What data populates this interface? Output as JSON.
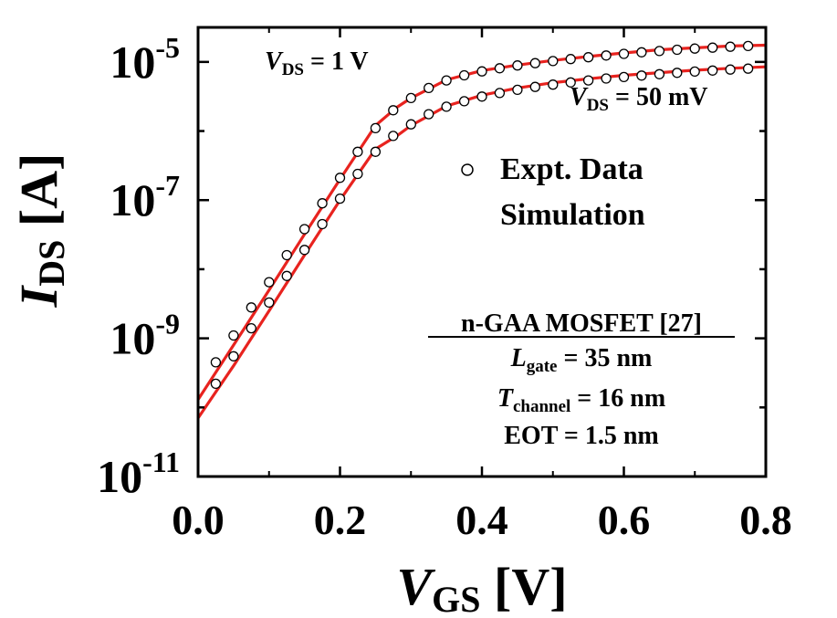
{
  "chart_data": {
    "type": "scatter",
    "xlabel": {
      "main": "V",
      "sub": "GS",
      "unit": " [V]"
    },
    "ylabel": {
      "main": "I",
      "sub": "DS",
      "unit": " [A]"
    },
    "xlim": [
      0.0,
      0.8
    ],
    "ylim_log10": [
      -11,
      -4.5
    ],
    "y_scale": "log",
    "x_ticks": [
      0.0,
      0.2,
      0.4,
      0.6,
      0.8
    ],
    "x_tick_labels": [
      "0.0",
      "0.2",
      "0.4",
      "0.6",
      "0.8"
    ],
    "y_ticks_log10": [
      -11,
      -9,
      -7,
      -5
    ],
    "y_tick_labels": [
      {
        "base": "10",
        "exp": "-11"
      },
      {
        "base": "10",
        "exp": "-9"
      },
      {
        "base": "10",
        "exp": "-7"
      },
      {
        "base": "10",
        "exp": "-5"
      }
    ],
    "legend": {
      "position": "center-right",
      "items": [
        {
          "label": "Expt. Data",
          "marker": "open-circle"
        },
        {
          "label": "Simulation",
          "marker": "none"
        }
      ]
    },
    "series": [
      {
        "name": "V_DS = 1 V",
        "label": {
          "main": "V",
          "sub": "DS",
          "rest": " = 1 V"
        },
        "color": "#e8231f",
        "simulation": {
          "x": [
            0.0,
            0.05,
            0.1,
            0.15,
            0.2,
            0.25,
            0.28,
            0.3,
            0.35,
            0.4,
            0.45,
            0.5,
            0.55,
            0.6,
            0.65,
            0.7,
            0.75,
            0.8
          ],
          "y": [
            1.3e-10,
            8e-10,
            5e-09,
            3.2e-08,
            2e-07,
            1.2e-06,
            2.2e-06,
            3e-06,
            5.5e-06,
            7.5e-06,
            9e-06,
            1.05e-05,
            1.2e-05,
            1.35e-05,
            1.5e-05,
            1.6e-05,
            1.7e-05,
            1.75e-05
          ]
        },
        "expt": {
          "x": [
            0.025,
            0.05,
            0.075,
            0.1,
            0.125,
            0.15,
            0.175,
            0.2,
            0.225,
            0.25,
            0.275,
            0.3,
            0.325,
            0.35,
            0.375,
            0.4,
            0.425,
            0.45,
            0.475,
            0.5,
            0.525,
            0.55,
            0.575,
            0.6,
            0.625,
            0.65,
            0.675,
            0.7,
            0.725,
            0.75,
            0.775
          ],
          "y": [
            4.5e-10,
            1.1e-09,
            2.8e-09,
            6.5e-09,
            1.6e-08,
            3.8e-08,
            9e-08,
            2.1e-07,
            5e-07,
            1.1e-06,
            2e-06,
            3e-06,
            4.2e-06,
            5.4e-06,
            6.4e-06,
            7.3e-06,
            8.1e-06,
            8.9e-06,
            9.6e-06,
            1.03e-05,
            1.1e-05,
            1.17e-05,
            1.24e-05,
            1.31e-05,
            1.38e-05,
            1.44e-05,
            1.5e-05,
            1.56e-05,
            1.61e-05,
            1.66e-05,
            1.7e-05
          ]
        }
      },
      {
        "name": "V_DS = 50 mV",
        "label": {
          "main": "V",
          "sub": "DS",
          "rest": " = 50 mV"
        },
        "color": "#e8231f",
        "simulation": {
          "x": [
            0.0,
            0.05,
            0.1,
            0.15,
            0.2,
            0.25,
            0.28,
            0.3,
            0.35,
            0.4,
            0.45,
            0.5,
            0.55,
            0.6,
            0.65,
            0.7,
            0.75,
            0.8
          ],
          "y": [
            7e-11,
            4e-10,
            2.5e-09,
            1.6e-08,
            1e-07,
            5.5e-07,
            8.5e-07,
            1.2e-06,
            2.3e-06,
            3.3e-06,
            4.2e-06,
            5e-06,
            5.7e-06,
            6.4e-06,
            7e-06,
            7.6e-06,
            8.1e-06,
            8.5e-06
          ]
        },
        "expt": {
          "x": [
            0.025,
            0.05,
            0.075,
            0.1,
            0.125,
            0.15,
            0.175,
            0.2,
            0.225,
            0.25,
            0.275,
            0.3,
            0.325,
            0.35,
            0.375,
            0.4,
            0.425,
            0.45,
            0.475,
            0.5,
            0.525,
            0.55,
            0.575,
            0.6,
            0.625,
            0.65,
            0.675,
            0.7,
            0.725,
            0.75,
            0.775
          ],
          "y": [
            2.2e-10,
            5.5e-10,
            1.4e-09,
            3.3e-09,
            8e-09,
            1.9e-08,
            4.5e-08,
            1.05e-07,
            2.4e-07,
            5e-07,
            8.5e-07,
            1.25e-06,
            1.75e-06,
            2.25e-06,
            2.7e-06,
            3.15e-06,
            3.55e-06,
            3.95e-06,
            4.35e-06,
            4.7e-06,
            5.05e-06,
            5.4e-06,
            5.75e-06,
            6.05e-06,
            6.35e-06,
            6.65e-06,
            6.95e-06,
            7.25e-06,
            7.5e-06,
            7.75e-06,
            8e-06
          ]
        }
      }
    ],
    "annotation_box": {
      "title": "n-GAA MOSFET [27]",
      "lines": [
        {
          "main": "L",
          "sub": "gate",
          "rest": " = 35 nm"
        },
        {
          "main": "T",
          "sub": "channel",
          "rest": " = 16 nm"
        },
        {
          "main": "",
          "sub": "",
          "rest": "EOT = 1.5 nm"
        }
      ]
    }
  }
}
